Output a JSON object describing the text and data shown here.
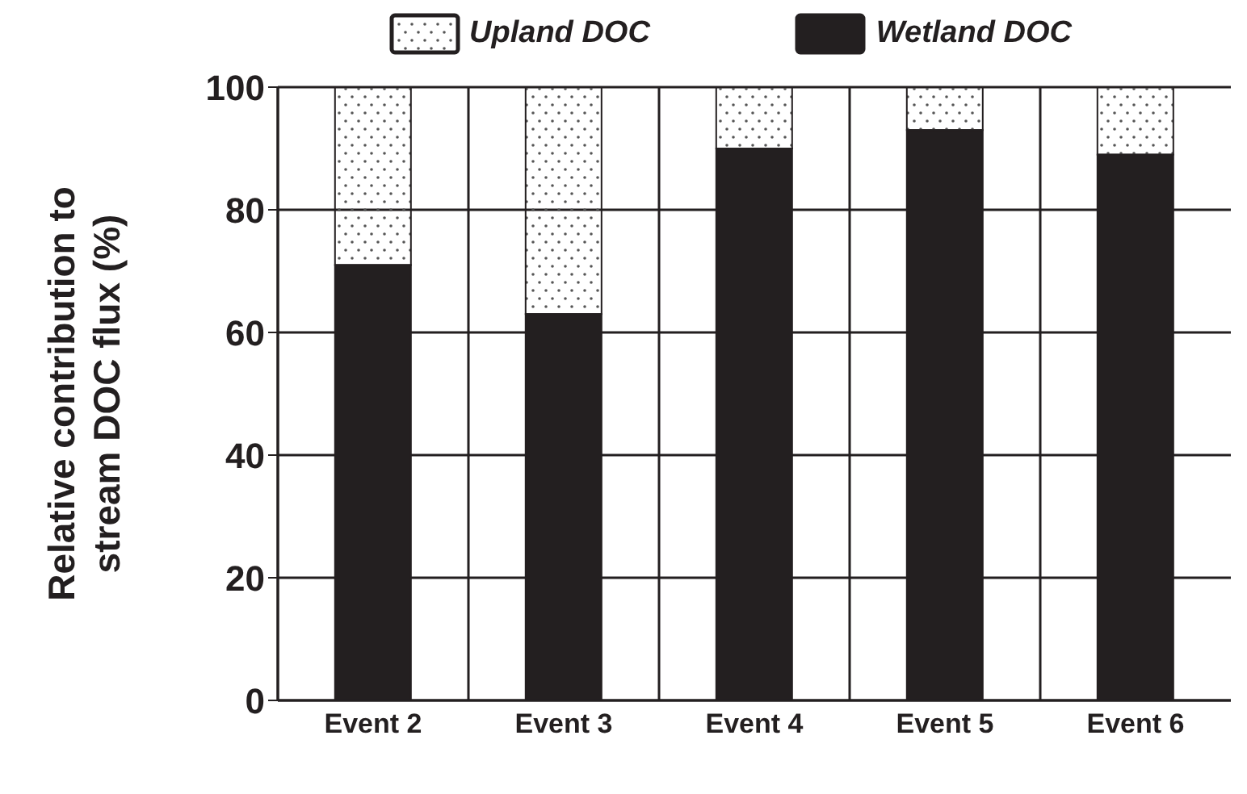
{
  "chart_data": {
    "type": "bar",
    "stacked": true,
    "ylabel": "Relative contribution to stream DOC flux (%)",
    "categories": [
      "Event 2",
      "Event 3",
      "Event 4",
      "Event 5",
      "Event 6"
    ],
    "series": [
      {
        "name": "Wetland DOC",
        "color": "#231f20",
        "values": [
          71,
          63,
          90,
          93,
          89
        ]
      },
      {
        "name": "Upland DOC",
        "color": "#ffffff",
        "values": [
          29,
          37,
          10,
          7,
          11
        ]
      }
    ],
    "ylim": [
      0,
      100
    ],
    "yticks": [
      0,
      20,
      40,
      60,
      80,
      100
    ],
    "grid": true,
    "legend": "top"
  }
}
